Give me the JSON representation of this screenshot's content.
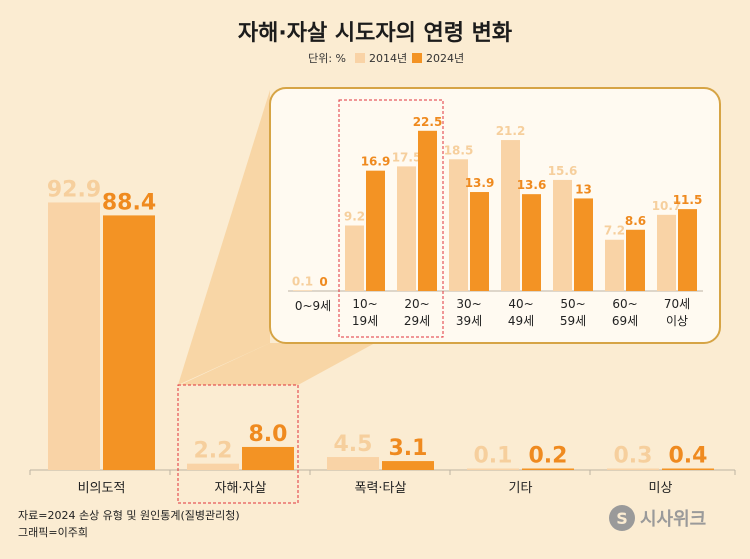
{
  "title": "자해·자살 시도자의 연령 변화",
  "legend": {
    "unit": "단위: %",
    "items": [
      {
        "name": "2014년",
        "color": "#f9d3a6"
      },
      {
        "name": "2024년",
        "color": "#f39324"
      }
    ]
  },
  "chart_data": [
    {
      "type": "bar",
      "title": "",
      "categories": [
        "비의도적",
        "자해·자살",
        "폭력·타살",
        "기타",
        "미상"
      ],
      "series": [
        {
          "name": "2014년",
          "values": [
            92.9,
            2.2,
            4.5,
            0.1,
            0.3
          ]
        },
        {
          "name": "2024년",
          "values": [
            88.4,
            8.0,
            3.1,
            0.2,
            0.4
          ]
        }
      ],
      "value_labels": {
        "2014년": [
          "92.9",
          "2.2",
          "4.5",
          "0.1",
          "0.3"
        ],
        "2024년": [
          "88.4",
          "8.0",
          "3.1",
          "0.2",
          "0.4"
        ]
      },
      "ylim": [
        0,
        100
      ],
      "highlight_category": "자해·자살",
      "grid": false
    },
    {
      "type": "bar",
      "title": "",
      "categories": [
        "0~9세",
        "10~19세",
        "20~29세",
        "30~39세",
        "40~49세",
        "50~59세",
        "60~69세",
        "70세 이상"
      ],
      "category_lines": [
        [
          "0~9세"
        ],
        [
          "10~",
          "19세"
        ],
        [
          "20~",
          "29세"
        ],
        [
          "30~",
          "39세"
        ],
        [
          "40~",
          "49세"
        ],
        [
          "50~",
          "59세"
        ],
        [
          "60~",
          "69세"
        ],
        [
          "70세",
          "이상"
        ]
      ],
      "series": [
        {
          "name": "2014년",
          "values": [
            0.1,
            9.2,
            17.5,
            18.5,
            21.2,
            15.6,
            7.2,
            10.7
          ]
        },
        {
          "name": "2024년",
          "values": [
            0,
            16.9,
            22.5,
            13.9,
            13.6,
            13,
            8.6,
            11.5
          ]
        }
      ],
      "value_labels": {
        "2014년": [
          "0.1",
          "9.2",
          "17.5",
          "18.5",
          "21.2",
          "15.6",
          "7.2",
          "10.7"
        ],
        "2024년": [
          "0",
          "16.9",
          "22.5",
          "13.9",
          "13.6",
          "13",
          "8.6",
          "11.5"
        ]
      },
      "ylim": [
        0,
        25
      ],
      "highlight_categories": [
        "10~19세",
        "20~29세"
      ],
      "grid": false
    }
  ],
  "source": "자료=2024 손상 유형 및 원인통계(질병관리청)",
  "credit": "그래픽=이주희",
  "logo": "시사위크"
}
